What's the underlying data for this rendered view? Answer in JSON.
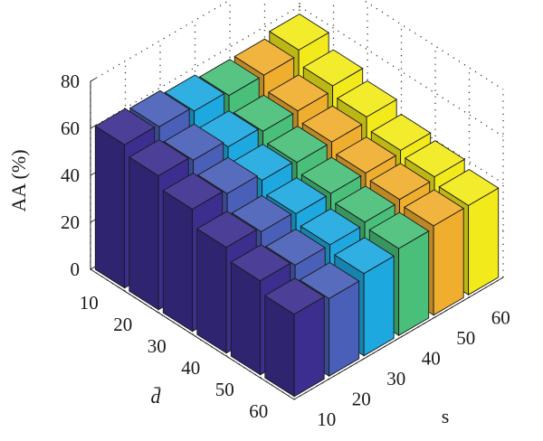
{
  "chart_data": {
    "type": "bar3d",
    "xlabel": "s",
    "ylabel": "d̄",
    "zlabel": "AA (%)",
    "s_values": [
      "10",
      "20",
      "30",
      "40",
      "50",
      "60"
    ],
    "d_values": [
      "10",
      "20",
      "30",
      "40",
      "50",
      "60"
    ],
    "z_ticks": [
      "0",
      "20",
      "40",
      "60",
      "80"
    ],
    "zlim": [
      0,
      80
    ],
    "grid": true,
    "series_colors": [
      "#3b2e8f",
      "#4a5fb8",
      "#1ea8e0",
      "#49bf79",
      "#f0ae2e",
      "#f2ea1b"
    ],
    "values": [
      [
        61,
        60,
        58,
        56,
        56,
        58
      ],
      [
        57,
        55,
        52,
        50,
        50,
        52
      ],
      [
        52,
        50,
        47,
        46,
        46,
        48
      ],
      [
        45,
        43,
        42,
        42,
        42,
        43
      ],
      [
        40,
        38,
        38,
        39,
        40,
        41
      ],
      [
        35,
        33,
        35,
        37,
        38,
        38
      ]
    ]
  }
}
